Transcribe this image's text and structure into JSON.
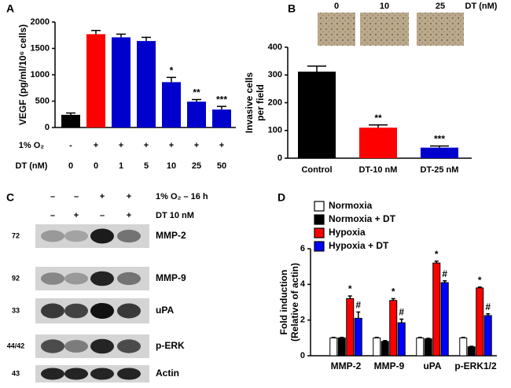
{
  "chart_data": [
    {
      "type": "bar",
      "panel": "A",
      "ylabel": "VEGF (pg/ml/10⁶ cells)",
      "values": [
        240,
        1770,
        1710,
        1640,
        860,
        490,
        340
      ],
      "errors": [
        35,
        70,
        60,
        70,
        90,
        40,
        60
      ],
      "colors": [
        "#000000",
        "#ff0000",
        "#0000cc",
        "#0000cc",
        "#0000cc",
        "#0000cc",
        "#0000cc"
      ],
      "annotations": [
        null,
        null,
        null,
        null,
        "*",
        "**",
        "***"
      ],
      "conditions": [
        {
          "label": "1% O₂",
          "values": [
            "-",
            "+",
            "+",
            "+",
            "+",
            "+",
            "+"
          ]
        },
        {
          "label": "DT (nM)",
          "values": [
            "0",
            "0",
            "1",
            "5",
            "10",
            "25",
            "50"
          ]
        }
      ],
      "ylim": [
        0,
        2000
      ],
      "yticks": [
        0,
        500,
        1000,
        1500,
        2000
      ]
    },
    {
      "type": "bar",
      "panel": "B",
      "ylabel": [
        "Invasive cells",
        "per field"
      ],
      "categories": [
        "Control",
        "DT-10 nM",
        "DT-25 nM"
      ],
      "values": [
        312,
        110,
        38
      ],
      "errors": [
        20,
        10,
        6
      ],
      "colors": [
        "#000000",
        "#ff0000",
        "#0000cc"
      ],
      "annotations": [
        null,
        "**",
        "***"
      ],
      "images": {
        "labels": [
          "0",
          "10",
          "25"
        ],
        "title": "DT (nM)"
      },
      "ylim": [
        0,
        400
      ],
      "yticks": [
        0,
        100,
        200,
        300,
        400
      ]
    },
    {
      "type": "grouped_bar",
      "panel": "D",
      "ylabel": [
        "Fold induction",
        "(Relative of actin)"
      ],
      "categories": [
        "MMP-2",
        "MMP-9",
        "uPA",
        "p-ERK1/2"
      ],
      "series": [
        {
          "name": "Normoxia",
          "color": "#ffffff",
          "values": [
            1,
            1,
            1,
            1
          ],
          "errors": [
            0.03,
            0.03,
            0.03,
            0.03
          ],
          "annotations": [
            null,
            null,
            null,
            null
          ]
        },
        {
          "name": "Normoxia + DT",
          "color": "#000000",
          "values": [
            1,
            0.8,
            0.95,
            0.5
          ],
          "errors": [
            0.03,
            0.05,
            0.03,
            0.03
          ],
          "annotations": [
            null,
            null,
            null,
            null
          ]
        },
        {
          "name": "Hypoxia",
          "color": "#ff0000",
          "values": [
            3.2,
            3.1,
            5.2,
            3.8
          ],
          "errors": [
            0.15,
            0.1,
            0.1,
            0.05
          ],
          "annotations": [
            "*",
            "*",
            "*",
            "*"
          ]
        },
        {
          "name": "Hypoxia + DT",
          "color": "#0000ff",
          "values": [
            2.1,
            1.85,
            4.1,
            2.25
          ],
          "errors": [
            0.35,
            0.2,
            0.1,
            0.1
          ],
          "annotations": [
            "#",
            "#",
            "#",
            "#"
          ]
        }
      ],
      "legend": "top-left",
      "ylim": [
        0,
        6
      ],
      "yticks": [
        0,
        2,
        4,
        6
      ]
    }
  ],
  "blot": {
    "panel": "C",
    "conditions": [
      {
        "label": "1% O₂ – 16 h",
        "values": [
          "–",
          "–",
          "+",
          "+"
        ]
      },
      {
        "label": "DT 10 nM",
        "values": [
          "–",
          "+",
          "–",
          "+"
        ]
      }
    ],
    "rows": [
      {
        "kda": "72",
        "name": "MMP-2"
      },
      {
        "kda": "92",
        "name": "MMP-9"
      },
      {
        "kda": "33",
        "name": "uPA"
      },
      {
        "kda": "44/42",
        "name": "p-ERK"
      },
      {
        "kda": "43",
        "name": "Actin"
      }
    ]
  }
}
